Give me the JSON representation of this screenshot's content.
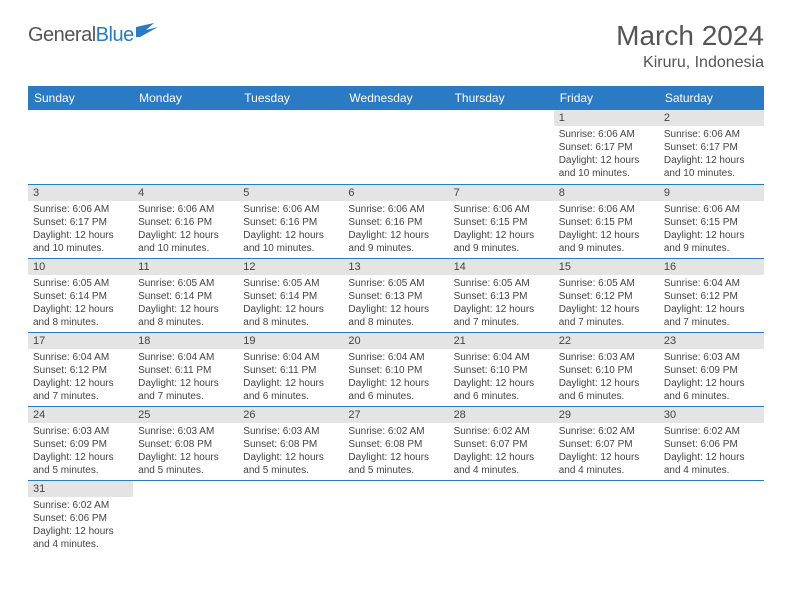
{
  "logo": {
    "part1": "General",
    "part2": "Blue"
  },
  "title": "March 2024",
  "location": "Kiruru, Indonesia",
  "header_bg": "#2b7ac4",
  "daynum_bg": "#e4e4e4",
  "border_color": "#2b7ac4",
  "weekdays": [
    "Sunday",
    "Monday",
    "Tuesday",
    "Wednesday",
    "Thursday",
    "Friday",
    "Saturday"
  ],
  "weeks": [
    [
      null,
      null,
      null,
      null,
      null,
      {
        "n": "1",
        "sr": "Sunrise: 6:06 AM",
        "ss": "Sunset: 6:17 PM",
        "d1": "Daylight: 12 hours",
        "d2": "and 10 minutes."
      },
      {
        "n": "2",
        "sr": "Sunrise: 6:06 AM",
        "ss": "Sunset: 6:17 PM",
        "d1": "Daylight: 12 hours",
        "d2": "and 10 minutes."
      }
    ],
    [
      {
        "n": "3",
        "sr": "Sunrise: 6:06 AM",
        "ss": "Sunset: 6:17 PM",
        "d1": "Daylight: 12 hours",
        "d2": "and 10 minutes."
      },
      {
        "n": "4",
        "sr": "Sunrise: 6:06 AM",
        "ss": "Sunset: 6:16 PM",
        "d1": "Daylight: 12 hours",
        "d2": "and 10 minutes."
      },
      {
        "n": "5",
        "sr": "Sunrise: 6:06 AM",
        "ss": "Sunset: 6:16 PM",
        "d1": "Daylight: 12 hours",
        "d2": "and 10 minutes."
      },
      {
        "n": "6",
        "sr": "Sunrise: 6:06 AM",
        "ss": "Sunset: 6:16 PM",
        "d1": "Daylight: 12 hours",
        "d2": "and 9 minutes."
      },
      {
        "n": "7",
        "sr": "Sunrise: 6:06 AM",
        "ss": "Sunset: 6:15 PM",
        "d1": "Daylight: 12 hours",
        "d2": "and 9 minutes."
      },
      {
        "n": "8",
        "sr": "Sunrise: 6:06 AM",
        "ss": "Sunset: 6:15 PM",
        "d1": "Daylight: 12 hours",
        "d2": "and 9 minutes."
      },
      {
        "n": "9",
        "sr": "Sunrise: 6:06 AM",
        "ss": "Sunset: 6:15 PM",
        "d1": "Daylight: 12 hours",
        "d2": "and 9 minutes."
      }
    ],
    [
      {
        "n": "10",
        "sr": "Sunrise: 6:05 AM",
        "ss": "Sunset: 6:14 PM",
        "d1": "Daylight: 12 hours",
        "d2": "and 8 minutes."
      },
      {
        "n": "11",
        "sr": "Sunrise: 6:05 AM",
        "ss": "Sunset: 6:14 PM",
        "d1": "Daylight: 12 hours",
        "d2": "and 8 minutes."
      },
      {
        "n": "12",
        "sr": "Sunrise: 6:05 AM",
        "ss": "Sunset: 6:14 PM",
        "d1": "Daylight: 12 hours",
        "d2": "and 8 minutes."
      },
      {
        "n": "13",
        "sr": "Sunrise: 6:05 AM",
        "ss": "Sunset: 6:13 PM",
        "d1": "Daylight: 12 hours",
        "d2": "and 8 minutes."
      },
      {
        "n": "14",
        "sr": "Sunrise: 6:05 AM",
        "ss": "Sunset: 6:13 PM",
        "d1": "Daylight: 12 hours",
        "d2": "and 7 minutes."
      },
      {
        "n": "15",
        "sr": "Sunrise: 6:05 AM",
        "ss": "Sunset: 6:12 PM",
        "d1": "Daylight: 12 hours",
        "d2": "and 7 minutes."
      },
      {
        "n": "16",
        "sr": "Sunrise: 6:04 AM",
        "ss": "Sunset: 6:12 PM",
        "d1": "Daylight: 12 hours",
        "d2": "and 7 minutes."
      }
    ],
    [
      {
        "n": "17",
        "sr": "Sunrise: 6:04 AM",
        "ss": "Sunset: 6:12 PM",
        "d1": "Daylight: 12 hours",
        "d2": "and 7 minutes."
      },
      {
        "n": "18",
        "sr": "Sunrise: 6:04 AM",
        "ss": "Sunset: 6:11 PM",
        "d1": "Daylight: 12 hours",
        "d2": "and 7 minutes."
      },
      {
        "n": "19",
        "sr": "Sunrise: 6:04 AM",
        "ss": "Sunset: 6:11 PM",
        "d1": "Daylight: 12 hours",
        "d2": "and 6 minutes."
      },
      {
        "n": "20",
        "sr": "Sunrise: 6:04 AM",
        "ss": "Sunset: 6:10 PM",
        "d1": "Daylight: 12 hours",
        "d2": "and 6 minutes."
      },
      {
        "n": "21",
        "sr": "Sunrise: 6:04 AM",
        "ss": "Sunset: 6:10 PM",
        "d1": "Daylight: 12 hours",
        "d2": "and 6 minutes."
      },
      {
        "n": "22",
        "sr": "Sunrise: 6:03 AM",
        "ss": "Sunset: 6:10 PM",
        "d1": "Daylight: 12 hours",
        "d2": "and 6 minutes."
      },
      {
        "n": "23",
        "sr": "Sunrise: 6:03 AM",
        "ss": "Sunset: 6:09 PM",
        "d1": "Daylight: 12 hours",
        "d2": "and 6 minutes."
      }
    ],
    [
      {
        "n": "24",
        "sr": "Sunrise: 6:03 AM",
        "ss": "Sunset: 6:09 PM",
        "d1": "Daylight: 12 hours",
        "d2": "and 5 minutes."
      },
      {
        "n": "25",
        "sr": "Sunrise: 6:03 AM",
        "ss": "Sunset: 6:08 PM",
        "d1": "Daylight: 12 hours",
        "d2": "and 5 minutes."
      },
      {
        "n": "26",
        "sr": "Sunrise: 6:03 AM",
        "ss": "Sunset: 6:08 PM",
        "d1": "Daylight: 12 hours",
        "d2": "and 5 minutes."
      },
      {
        "n": "27",
        "sr": "Sunrise: 6:02 AM",
        "ss": "Sunset: 6:08 PM",
        "d1": "Daylight: 12 hours",
        "d2": "and 5 minutes."
      },
      {
        "n": "28",
        "sr": "Sunrise: 6:02 AM",
        "ss": "Sunset: 6:07 PM",
        "d1": "Daylight: 12 hours",
        "d2": "and 4 minutes."
      },
      {
        "n": "29",
        "sr": "Sunrise: 6:02 AM",
        "ss": "Sunset: 6:07 PM",
        "d1": "Daylight: 12 hours",
        "d2": "and 4 minutes."
      },
      {
        "n": "30",
        "sr": "Sunrise: 6:02 AM",
        "ss": "Sunset: 6:06 PM",
        "d1": "Daylight: 12 hours",
        "d2": "and 4 minutes."
      }
    ],
    [
      {
        "n": "31",
        "sr": "Sunrise: 6:02 AM",
        "ss": "Sunset: 6:06 PM",
        "d1": "Daylight: 12 hours",
        "d2": "and 4 minutes."
      },
      null,
      null,
      null,
      null,
      null,
      null
    ]
  ]
}
